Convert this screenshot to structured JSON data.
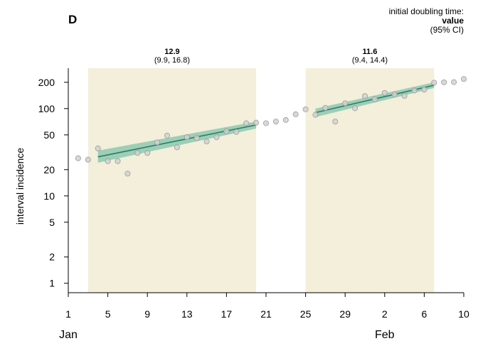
{
  "panel_label": "D",
  "legend_note": {
    "line1": "initial doubling time:",
    "line2": "value",
    "line3": "(95% CI)"
  },
  "chart_data": {
    "type": "scatter",
    "ylabel": "interval incidence",
    "yscale": "log",
    "ylim": [
      0.78,
      290
    ],
    "yticks": [
      1,
      2,
      5,
      10,
      20,
      50,
      100,
      200
    ],
    "xlim": [
      1,
      41
    ],
    "xticks": [
      {
        "day": 1,
        "label": "1"
      },
      {
        "day": 5,
        "label": "5"
      },
      {
        "day": 9,
        "label": "9"
      },
      {
        "day": 13,
        "label": "13"
      },
      {
        "day": 17,
        "label": "17"
      },
      {
        "day": 21,
        "label": "21"
      },
      {
        "day": 25,
        "label": "25"
      },
      {
        "day": 29,
        "label": "29"
      },
      {
        "day": 33,
        "label": "2"
      },
      {
        "day": 37,
        "label": "6"
      },
      {
        "day": 41,
        "label": "10"
      }
    ],
    "month_labels": [
      {
        "day": 1,
        "label": "Jan"
      },
      {
        "day": 33,
        "label": "Feb"
      }
    ],
    "windows": [
      {
        "start": 3,
        "end": 20,
        "doubling_time": "12.9",
        "ci": "(9.9, 16.8)"
      },
      {
        "start": 25,
        "end": 38,
        "doubling_time": "11.6",
        "ci": "(9.4, 14.4)"
      }
    ],
    "fits": [
      {
        "x0": 4,
        "x1": 20,
        "y0": 28,
        "y1": 65,
        "lo0": 24,
        "hi0": 33,
        "lo1": 59,
        "hi1": 71
      },
      {
        "x0": 26,
        "x1": 38,
        "y0": 90,
        "y1": 185,
        "lo0": 80,
        "hi0": 100,
        "lo1": 172,
        "hi1": 200
      }
    ],
    "points": [
      [
        2,
        27
      ],
      [
        3,
        26
      ],
      [
        4,
        35
      ],
      [
        5,
        25
      ],
      [
        6,
        25
      ],
      [
        7,
        18
      ],
      [
        8,
        31
      ],
      [
        9,
        31
      ],
      [
        10,
        41
      ],
      [
        11,
        49
      ],
      [
        12,
        36
      ],
      [
        13,
        47
      ],
      [
        14,
        46
      ],
      [
        15,
        42
      ],
      [
        16,
        47
      ],
      [
        17,
        55
      ],
      [
        18,
        54
      ],
      [
        19,
        68
      ],
      [
        20,
        69
      ],
      [
        21,
        68
      ],
      [
        22,
        71
      ],
      [
        23,
        74
      ],
      [
        24,
        86
      ],
      [
        25,
        98
      ],
      [
        26,
        85
      ],
      [
        27,
        102
      ],
      [
        28,
        71
      ],
      [
        29,
        115
      ],
      [
        30,
        101
      ],
      [
        31,
        139
      ],
      [
        32,
        128
      ],
      [
        33,
        151
      ],
      [
        34,
        145
      ],
      [
        35,
        140
      ],
      [
        36,
        161
      ],
      [
        37,
        165
      ],
      [
        38,
        198
      ],
      [
        39,
        200
      ],
      [
        40,
        201
      ],
      [
        41,
        218
      ]
    ],
    "colors": {
      "window": "#f3efda",
      "fit_line": "#2e7a6a",
      "fit_band": "#7fc4a9",
      "point_fill": "#d1d1d1",
      "point_stroke": "#9c9c9c"
    }
  }
}
